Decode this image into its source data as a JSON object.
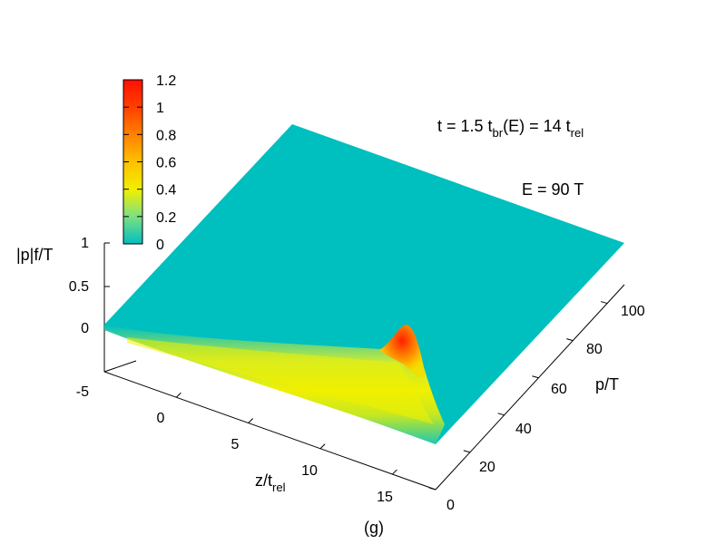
{
  "chart_data": {
    "type": "surface3d",
    "annotation_time": {
      "main": "t = 1.5 t",
      "sub1": "br",
      "mid": "(E) = 14 t",
      "sub2": "rel"
    },
    "annotation_energy": "E = 90 T",
    "panel_label": "(g)",
    "axes": {
      "x": {
        "label_main": "z/t",
        "label_sub": "rel",
        "range": [
          -5,
          18
        ],
        "ticks": [
          0,
          5,
          10,
          15
        ]
      },
      "y": {
        "label": "p/T",
        "range": [
          0,
          110
        ],
        "ticks": [
          0,
          20,
          40,
          60,
          80,
          100
        ]
      },
      "z": {
        "label": "|p|f/T",
        "range": [
          0,
          1
        ],
        "ticks": [
          1,
          0.5,
          0
        ],
        "floor_tick": "-5"
      }
    },
    "colorbar": {
      "range": [
        0,
        1.2
      ],
      "ticks": [
        "1.2",
        "1",
        "0.8",
        "0.6",
        "0.4",
        "0.2",
        "0"
      ],
      "colors": [
        "#00bfbf",
        "#80e080",
        "#f0f000",
        "#ffc000",
        "#ff8000",
        "#ff4000",
        "#ff1000"
      ]
    },
    "surface": {
      "description_values": {
        "background_value": 0,
        "ridge_low_p_value": 0.5,
        "peak_value": 1.2,
        "peak_z": 16,
        "peak_p": 5
      }
    }
  }
}
